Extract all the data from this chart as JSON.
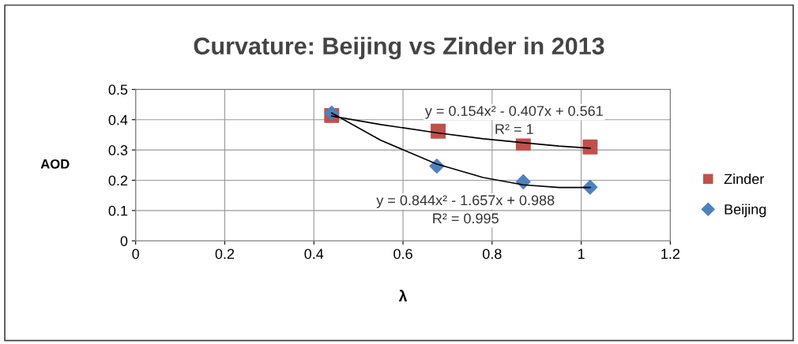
{
  "chart_data": {
    "type": "scatter",
    "title": "Curvature: Beijing vs Zinder in 2013",
    "xlabel": "λ",
    "ylabel": "AOD",
    "xlim": [
      0,
      1.2
    ],
    "xticks": [
      0,
      0.2,
      0.4,
      0.6,
      0.8,
      1,
      1.2
    ],
    "ylim": [
      0,
      0.5
    ],
    "yticks": [
      0,
      0.1,
      0.2,
      0.3,
      0.4,
      0.5
    ],
    "grid": true,
    "legend": "right",
    "series": [
      {
        "name": "Zinder",
        "marker": "square",
        "color": "#c0504d",
        "x": [
          0.44,
          0.679,
          0.87,
          1.02
        ],
        "values": [
          0.414,
          0.362,
          0.323,
          0.31
        ]
      },
      {
        "name": "Beijing",
        "marker": "diamond",
        "color": "#4f81bd",
        "x": [
          0.44,
          0.676,
          0.87,
          1.02
        ],
        "values": [
          0.422,
          0.247,
          0.195,
          0.177
        ]
      },
      {
        "type": "line",
        "marker": "none",
        "color": "#000000",
        "x": [
          0.44,
          0.55,
          0.675,
          0.78,
          0.87,
          0.95,
          1.02
        ],
        "values": [
          0.412,
          0.384,
          0.357,
          0.337,
          0.324,
          0.313,
          0.306
        ]
      },
      {
        "type": "line",
        "marker": "none",
        "color": "#000000",
        "x": [
          0.44,
          0.55,
          0.675,
          0.78,
          0.87,
          0.95,
          1.02
        ],
        "values": [
          0.422,
          0.332,
          0.254,
          0.209,
          0.185,
          0.176,
          0.176
        ]
      }
    ],
    "annotations": [
      "y = 0.154x² - 0.407x + 0.561",
      "R² = 1",
      "y = 0.844x² - 1.657x + 0.988",
      "R² = 0.995"
    ]
  }
}
